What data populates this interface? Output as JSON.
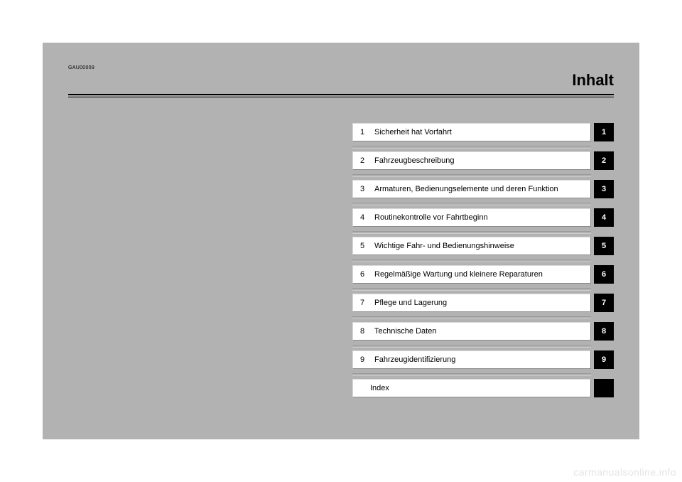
{
  "page": {
    "ref_code": "GAU00009",
    "title": "Inhalt",
    "watermark": "carmanualsonline.info"
  },
  "toc": {
    "items": [
      {
        "num": "1",
        "label": "Sicherheit hat Vorfahrt",
        "tab": "1"
      },
      {
        "num": "2",
        "label": "Fahrzeugbeschreibung",
        "tab": "2"
      },
      {
        "num": "3",
        "label": "Armaturen, Bedienungselemente und deren Funktion",
        "tab": "3"
      },
      {
        "num": "4",
        "label": "Routinekontrolle vor Fahrtbeginn",
        "tab": "4"
      },
      {
        "num": "5",
        "label": "Wichtige Fahr- und Bedienungshinweise",
        "tab": "5"
      },
      {
        "num": "6",
        "label": "Regelmäßige Wartung und kleinere Reparaturen",
        "tab": "6"
      },
      {
        "num": "7",
        "label": "Pflege und Lagerung",
        "tab": "7"
      },
      {
        "num": "8",
        "label": "Technische Daten",
        "tab": "8"
      },
      {
        "num": "9",
        "label": "Fahrzeugidentifizierung",
        "tab": "9"
      },
      {
        "num": "",
        "label": "Index",
        "tab": ""
      }
    ]
  },
  "style": {
    "page_bg": "#b2b2b2",
    "cell_bg": "#ffffff",
    "tab_bg": "#000000",
    "tab_fg": "#ffffff",
    "font_size_title": 22,
    "font_size_item": 11,
    "font_size_ref": 7
  }
}
